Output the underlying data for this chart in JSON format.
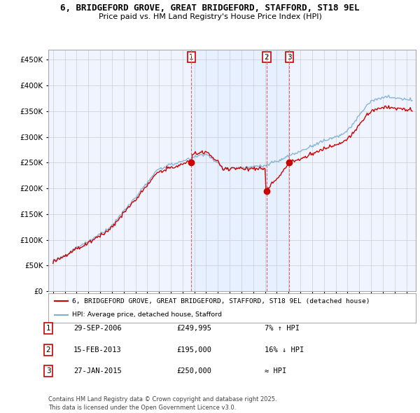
{
  "title1": "6, BRIDGEFORD GROVE, GREAT BRIDGEFORD, STAFFORD, ST18 9EL",
  "title2": "Price paid vs. HM Land Registry's House Price Index (HPI)",
  "ylim": [
    0,
    470000
  ],
  "yticks": [
    0,
    50000,
    100000,
    150000,
    200000,
    250000,
    300000,
    350000,
    400000,
    450000
  ],
  "xlim_left": 1994.6,
  "xlim_right": 2025.8,
  "legend_line1": "6, BRIDGEFORD GROVE, GREAT BRIDGEFORD, STAFFORD, ST18 9EL (detached house)",
  "legend_line2": "HPI: Average price, detached house, Stafford",
  "transactions": [
    {
      "num": 1,
      "date": "29-SEP-2006",
      "price": 249995,
      "price_str": "£249,995",
      "hpi": "7% ↑ HPI",
      "x_year": 2006.75
    },
    {
      "num": 2,
      "date": "15-FEB-2013",
      "price": 195000,
      "price_str": "£195,000",
      "hpi": "16% ↓ HPI",
      "x_year": 2013.12
    },
    {
      "num": 3,
      "date": "27-JAN-2015",
      "price": 250000,
      "price_str": "£250,000",
      "hpi": "≈ HPI",
      "x_year": 2015.07
    }
  ],
  "footer": "Contains HM Land Registry data © Crown copyright and database right 2025.\nThis data is licensed under the Open Government Licence v3.0.",
  "hpi_color": "#7bafd4",
  "price_color": "#cc0000",
  "vline_color": "#dd6666",
  "grid_color": "#cccccc",
  "shade_color": "#ddeeff",
  "background_color": "#ffffff",
  "chart_bg": "#f0f4ff"
}
